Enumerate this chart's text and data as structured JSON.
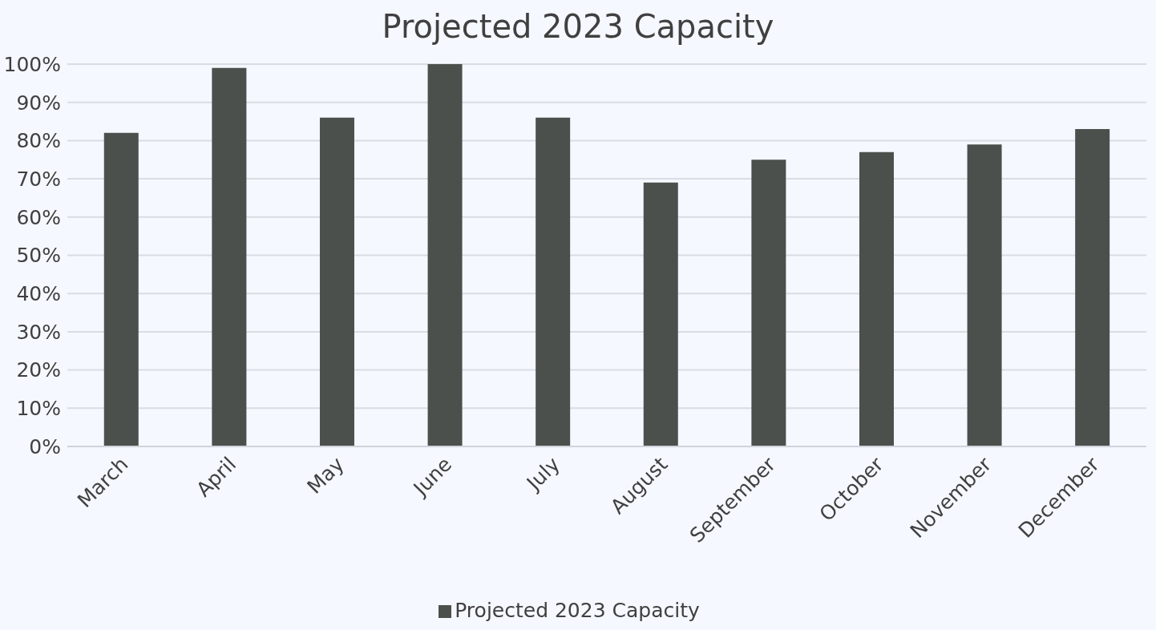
{
  "chart_data": {
    "type": "bar",
    "title": "Projected 2023 Capacity",
    "categories": [
      "March",
      "April",
      "May",
      "June",
      "July",
      "August",
      "September",
      "October",
      "November",
      "December"
    ],
    "series": [
      {
        "name": "Projected 2023 Capacity",
        "color": "#4b504c",
        "values": [
          82,
          99,
          86,
          100,
          86,
          69,
          75,
          77,
          79,
          83
        ]
      }
    ],
    "ylim": [
      0,
      100
    ],
    "yticks": [
      {
        "value": 0,
        "label": "0%"
      },
      {
        "value": 10,
        "label": "10%"
      },
      {
        "value": 20,
        "label": "20%"
      },
      {
        "value": 30,
        "label": "30%"
      },
      {
        "value": 40,
        "label": "40%"
      },
      {
        "value": 50,
        "label": "50%"
      },
      {
        "value": 60,
        "label": "60%"
      },
      {
        "value": 70,
        "label": "70%"
      },
      {
        "value": 80,
        "label": "80%"
      },
      {
        "value": 90,
        "label": "90%"
      },
      {
        "value": 100,
        "label": "100%"
      }
    ],
    "grid": "y",
    "legend": "bottom"
  }
}
